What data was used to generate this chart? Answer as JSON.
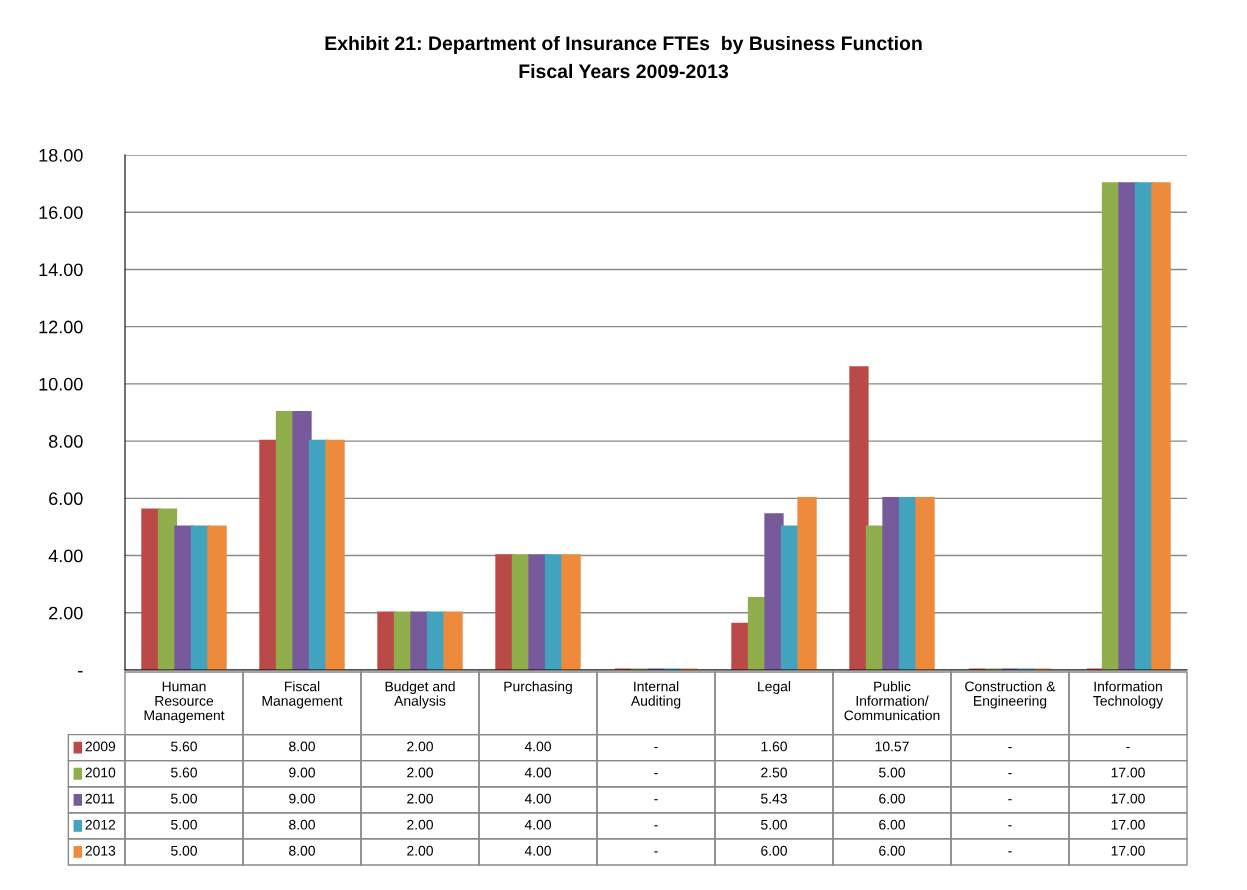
{
  "chart_data": {
    "type": "bar",
    "title": "Exhibit 21: Department of Insurance FTEs  by Business Function",
    "subtitle": "Fiscal Years 2009-2013",
    "categories": [
      "Human\nResource\nManagement",
      "Fiscal\nManagement",
      "Budget and\nAnalysis",
      "Purchasing",
      "Internal\nAuditing",
      "Legal",
      "Public\nInformation/\nCommunication",
      "Construction &\nEngineering",
      "Information\nTechnology"
    ],
    "series": [
      {
        "name": "2009",
        "color": "#b94a48",
        "values": [
          5.6,
          8,
          2,
          4,
          0,
          1.6,
          10.57,
          0,
          0
        ],
        "value_labels": [
          "5.60",
          "8.00",
          "2.00",
          "4.00",
          "-",
          "1.60",
          "10.57",
          "-",
          "-"
        ]
      },
      {
        "name": "2010",
        "color": "#8fad4b",
        "values": [
          5.6,
          9,
          2,
          4,
          0,
          2.5,
          5,
          0,
          17
        ],
        "value_labels": [
          "5.60",
          "9.00",
          "2.00",
          "4.00",
          "-",
          "2.50",
          "5.00",
          "-",
          "17.00"
        ]
      },
      {
        "name": "2011",
        "color": "#775a9b",
        "values": [
          5,
          9,
          2,
          4,
          0,
          5.43,
          6,
          0,
          17
        ],
        "value_labels": [
          "5.00",
          "9.00",
          "2.00",
          "4.00",
          "-",
          "5.43",
          "6.00",
          "-",
          "17.00"
        ]
      },
      {
        "name": "2012",
        "color": "#42a3bf",
        "values": [
          5,
          8,
          2,
          4,
          0,
          5,
          6,
          0,
          17
        ],
        "value_labels": [
          "5.00",
          "8.00",
          "2.00",
          "4.00",
          "-",
          "5.00",
          "6.00",
          "-",
          "17.00"
        ]
      },
      {
        "name": "2013",
        "color": "#ee8a3c",
        "values": [
          5,
          8,
          2,
          4,
          0,
          6,
          6,
          0,
          17
        ],
        "value_labels": [
          "5.00",
          "8.00",
          "2.00",
          "4.00",
          "-",
          "6.00",
          "6.00",
          "-",
          "17.00"
        ]
      }
    ],
    "ylim": [
      0,
      18
    ],
    "yticks": [
      {
        "value": 0,
        "label": "-"
      },
      {
        "value": 2,
        "label": "2.00"
      },
      {
        "value": 4,
        "label": "4.00"
      },
      {
        "value": 6,
        "label": "6.00"
      },
      {
        "value": 8,
        "label": "8.00"
      },
      {
        "value": 10,
        "label": "10.00"
      },
      {
        "value": 12,
        "label": "12.00"
      },
      {
        "value": 14,
        "label": "14.00"
      },
      {
        "value": 16,
        "label": "16.00"
      },
      {
        "value": 18,
        "label": "18.00"
      }
    ],
    "grid": "y",
    "data_labels": true,
    "legend": "bottom left"
  }
}
